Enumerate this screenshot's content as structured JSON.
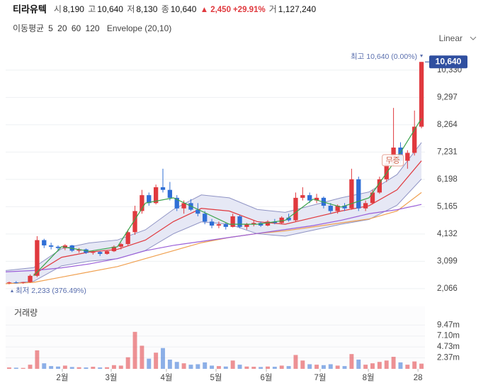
{
  "header": {
    "name": "티라유텍",
    "fields": [
      {
        "label": "시",
        "value": "8,190"
      },
      {
        "label": "고",
        "value": "10,640"
      },
      {
        "label": "저",
        "value": "8,130"
      },
      {
        "label": "종",
        "value": "10,640"
      }
    ],
    "change_arrow": "▲",
    "change": "2,450",
    "change_pct": "+29.91%",
    "volume_label": "거",
    "volume": "1,127,240"
  },
  "legend_title": "이동평균",
  "scale_label": "Linear",
  "chart_data": {
    "type": "candlestick",
    "candles": {
      "up_color": "#e0393e",
      "down_color": "#2f6fd6",
      "open": [
        2280,
        2300,
        2290,
        2310,
        2550,
        3900,
        3700,
        3650,
        3600,
        3700,
        3500,
        3550,
        3420,
        3450,
        3380,
        3480,
        3650,
        3750,
        4200,
        5000,
        5600,
        5300,
        5900,
        5800,
        5500,
        5100,
        5300,
        5050,
        4900,
        4600,
        4450,
        4500,
        4400,
        4800,
        4400,
        4500,
        4550,
        4450,
        4600,
        4550,
        4750,
        4650,
        5500,
        5600,
        5400,
        5500,
        5200,
        5000,
        5200,
        5100,
        6200,
        5100,
        5300,
        5700,
        6200,
        6800,
        7400,
        6900,
        7200,
        8190
      ],
      "high": [
        2330,
        2350,
        2320,
        2600,
        4050,
        3950,
        3800,
        3700,
        3750,
        3720,
        3600,
        3580,
        3500,
        3480,
        3500,
        3700,
        3800,
        4300,
        5200,
        5800,
        5700,
        6000,
        6600,
        6100,
        5600,
        5400,
        5450,
        5300,
        5000,
        4700,
        4600,
        4550,
        4900,
        4850,
        4550,
        4650,
        4600,
        4650,
        4700,
        4800,
        4900,
        5700,
        5900,
        5700,
        5650,
        5550,
        5300,
        5250,
        5300,
        6600,
        6300,
        5400,
        5800,
        6300,
        6900,
        8900,
        7600,
        7300,
        8800,
        10640
      ],
      "low": [
        2233,
        2260,
        2250,
        2290,
        2500,
        3600,
        3550,
        3500,
        3520,
        3450,
        3420,
        3380,
        3350,
        3300,
        3350,
        3450,
        3550,
        3700,
        4100,
        4900,
        5200,
        5250,
        5700,
        5400,
        5000,
        4900,
        5000,
        4800,
        4500,
        4350,
        4350,
        4300,
        4380,
        4350,
        4300,
        4420,
        4400,
        4420,
        4500,
        4500,
        4600,
        4600,
        5400,
        5300,
        5300,
        5100,
        4900,
        4900,
        5000,
        5050,
        5000,
        5000,
        5250,
        5650,
        6100,
        6700,
        6800,
        6600,
        7100,
        8130
      ],
      "close": [
        2300,
        2290,
        2310,
        2550,
        3900,
        3700,
        3650,
        3600,
        3700,
        3500,
        3550,
        3420,
        3450,
        3380,
        3480,
        3650,
        3750,
        4200,
        5000,
        5600,
        5300,
        5900,
        5800,
        5500,
        5100,
        5300,
        5050,
        4900,
        4600,
        4450,
        4500,
        4400,
        4800,
        4400,
        4500,
        4550,
        4450,
        4600,
        4550,
        4750,
        4650,
        5500,
        5600,
        5400,
        5500,
        5200,
        5000,
        5200,
        5100,
        6200,
        5100,
        5300,
        5700,
        6200,
        6800,
        7400,
        6900,
        7200,
        8190,
        10640
      ]
    },
    "series": [
      {
        "name": "5",
        "color": "#3aa34a",
        "x": [
          4,
          8,
          12,
          16,
          20,
          24,
          28,
          32,
          36,
          40,
          44,
          48,
          52,
          56,
          59.5
        ],
        "values": [
          2550,
          3650,
          3480,
          3650,
          5300,
          5500,
          5000,
          4500,
          4500,
          4650,
          5450,
          5150,
          5500,
          7000,
          8500
        ]
      },
      {
        "name": "20",
        "color": "#e0393e",
        "x": [
          4,
          8,
          12,
          16,
          20,
          24,
          28,
          32,
          36,
          40,
          44,
          48,
          52,
          56,
          59.5
        ],
        "values": [
          2600,
          3250,
          3450,
          3550,
          3900,
          4600,
          5100,
          5000,
          4600,
          4500,
          4750,
          5000,
          5200,
          5800,
          6900
        ]
      },
      {
        "name": "60",
        "color": "#f0a050",
        "x": [
          0,
          4,
          8,
          12,
          16,
          20,
          24,
          28,
          32,
          36,
          40,
          44,
          48,
          52,
          56,
          59.5
        ],
        "values": [
          2250,
          2300,
          2500,
          2700,
          2900,
          3200,
          3500,
          3800,
          4000,
          4150,
          4250,
          4400,
          4550,
          4700,
          5000,
          5700
        ]
      },
      {
        "name": "120",
        "color": "#9a5fd8",
        "x": [
          0,
          4,
          8,
          12,
          16,
          20,
          24,
          28,
          32,
          36,
          40,
          44,
          48,
          52,
          56,
          59.5
        ],
        "values": [
          2700,
          2750,
          2850,
          3000,
          3200,
          3500,
          3700,
          3850,
          4000,
          4150,
          4300,
          4450,
          4650,
          4900,
          5050,
          5250
        ]
      }
    ],
    "envelope": {
      "name": "Envelope (20,10)",
      "color": "#8f93c4",
      "fill": "#e6e8f5",
      "x": [
        0,
        4,
        8,
        12,
        16,
        20,
        24,
        28,
        32,
        36,
        40,
        44,
        48,
        52,
        56,
        59.5
      ],
      "upper": [
        2750,
        2860,
        3575,
        3795,
        3905,
        4290,
        5060,
        5610,
        5500,
        5060,
        4950,
        5225,
        5500,
        5720,
        6380,
        7590
      ],
      "lower": [
        2250,
        2340,
        2925,
        3105,
        3195,
        3510,
        4140,
        4590,
        4500,
        4140,
        4050,
        4275,
        4500,
        4680,
        5220,
        6210
      ]
    },
    "xlim": [
      0,
      60
    ],
    "xticks": [
      {
        "value": 8.1,
        "label": "2월"
      },
      {
        "value": 15.1,
        "label": "3월"
      },
      {
        "value": 23,
        "label": "4월"
      },
      {
        "value": 30.1,
        "label": "5월"
      },
      {
        "value": 37.3,
        "label": "6월"
      },
      {
        "value": 45,
        "label": "7월"
      },
      {
        "value": 51.9,
        "label": "8월"
      },
      {
        "value": 59,
        "label": "28"
      }
    ],
    "ylim": [
      1660,
      11050
    ],
    "yticks": [
      {
        "value": 2066,
        "label": "2,066"
      },
      {
        "value": 3099,
        "label": "3,099"
      },
      {
        "value": 4132,
        "label": "4,132"
      },
      {
        "value": 5165,
        "label": "5,165"
      },
      {
        "value": 6198,
        "label": "6,198"
      },
      {
        "value": 7231,
        "label": "7,231"
      },
      {
        "value": 8264,
        "label": "8,264"
      },
      {
        "value": 9297,
        "label": "9,297"
      },
      {
        "value": 10330,
        "label": "10,330"
      }
    ],
    "current_price": {
      "value": 10640,
      "label": "10,640"
    },
    "annotations": {
      "high": "최고 10,640 (0.00%)",
      "low": "최저 2,233 (376.49%)",
      "event": "무증"
    },
    "volume": {
      "title": "거래량",
      "ylim": [
        0,
        13500000
      ],
      "yticks": [
        {
          "value": 2370000,
          "label": "2.37m"
        },
        {
          "value": 4730000,
          "label": "4.73m"
        },
        {
          "value": 7100000,
          "label": "7.10m"
        },
        {
          "value": 9470000,
          "label": "9.47m"
        }
      ],
      "values": [
        300000,
        250000,
        200000,
        900000,
        4000000,
        1200000,
        600000,
        500000,
        700000,
        400000,
        350000,
        300000,
        450000,
        300000,
        350000,
        800000,
        700000,
        2500000,
        8000000,
        5000000,
        2200000,
        3500000,
        4500000,
        2000000,
        1500000,
        1200000,
        900000,
        1000000,
        1400000,
        700000,
        600000,
        500000,
        1800000,
        900000,
        500000,
        450000,
        400000,
        500000,
        450000,
        700000,
        600000,
        3000000,
        1800000,
        1000000,
        900000,
        800000,
        1000000,
        700000,
        600000,
        3200000,
        2000000,
        900000,
        1200000,
        1500000,
        1800000,
        2600000,
        1400000,
        900000,
        1600000,
        1127240
      ]
    }
  }
}
